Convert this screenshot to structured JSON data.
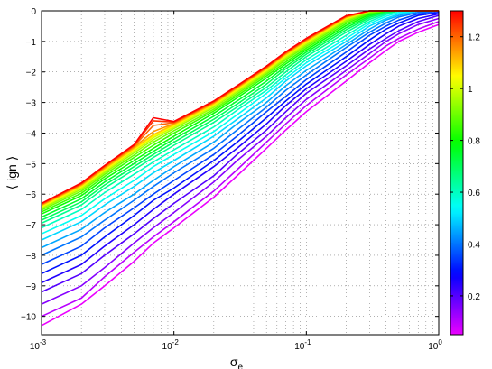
{
  "chart_data": {
    "type": "line",
    "title": "",
    "xlabel": "σ",
    "xlabel_subscript": "e",
    "ylabel": "⟨ ign ⟩",
    "xscale": "log",
    "xlim": [
      0.001,
      1
    ],
    "ylim": [
      -10.6,
      0
    ],
    "grid": "dotted",
    "legend": "none",
    "x_ticks": [
      0.001,
      0.01,
      0.1,
      1
    ],
    "x_tick_labels": [
      {
        "base": "10",
        "exp": "-3"
      },
      {
        "base": "10",
        "exp": "-2"
      },
      {
        "base": "10",
        "exp": "-1"
      },
      {
        "base": "10",
        "exp": "0"
      }
    ],
    "y_ticks": [
      0,
      -1,
      -2,
      -3,
      -4,
      -5,
      -6,
      -7,
      -8,
      -9,
      -10
    ],
    "y_tick_labels": [
      "0",
      "−1",
      "−2",
      "−3",
      "−4",
      "−5",
      "−6",
      "−7",
      "−8",
      "−9",
      "−10"
    ],
    "x": [
      0.001,
      0.002,
      0.003,
      0.005,
      0.007,
      0.01,
      0.02,
      0.03,
      0.05,
      0.07,
      0.1,
      0.2,
      0.3,
      0.4,
      0.5,
      0.7,
      1
    ],
    "series_param_range": [
      0.05,
      1.3
    ],
    "series_count": 26,
    "series_params_note_free": true,
    "colorbar": {
      "colormap": "hsv",
      "range": [
        0.05,
        1.3
      ],
      "ticks": [
        0.2,
        0.4,
        0.6,
        0.8,
        1,
        1.2
      ],
      "tick_labels": [
        "0.2",
        "0.4",
        "0.6",
        "0.8",
        "1",
        "1.2"
      ]
    },
    "series": [
      {
        "param": 0.05,
        "values": [
          -10.3,
          -9.6,
          -9.0,
          -8.2,
          -7.6,
          -7.1,
          -6.1,
          -5.4,
          -4.5,
          -3.9,
          -3.3,
          -2.3,
          -1.7,
          -1.3,
          -1.0,
          -0.7,
          -0.45
        ]
      },
      {
        "param": 0.1,
        "values": [
          -10.0,
          -9.4,
          -8.7,
          -7.9,
          -7.4,
          -6.9,
          -5.9,
          -5.2,
          -4.3,
          -3.7,
          -3.1,
          -2.1,
          -1.55,
          -1.15,
          -0.9,
          -0.6,
          -0.35
        ]
      },
      {
        "param": 0.15,
        "values": [
          -9.6,
          -9.0,
          -8.4,
          -7.6,
          -7.1,
          -6.6,
          -5.6,
          -4.9,
          -4.1,
          -3.5,
          -2.9,
          -1.95,
          -1.4,
          -1.0,
          -0.75,
          -0.45,
          -0.25
        ]
      },
      {
        "param": 0.2,
        "values": [
          -9.2,
          -8.6,
          -8.0,
          -7.3,
          -6.8,
          -6.3,
          -5.4,
          -4.7,
          -3.9,
          -3.3,
          -2.7,
          -1.8,
          -1.25,
          -0.9,
          -0.65,
          -0.35,
          -0.15
        ]
      },
      {
        "param": 0.25,
        "values": [
          -8.9,
          -8.3,
          -7.7,
          -7.0,
          -6.5,
          -6.0,
          -5.1,
          -4.5,
          -3.7,
          -3.1,
          -2.55,
          -1.65,
          -1.1,
          -0.75,
          -0.5,
          -0.25,
          -0.1
        ]
      },
      {
        "param": 0.3,
        "values": [
          -8.6,
          -8.0,
          -7.4,
          -6.7,
          -6.2,
          -5.8,
          -4.9,
          -4.3,
          -3.5,
          -2.95,
          -2.4,
          -1.5,
          -0.95,
          -0.6,
          -0.4,
          -0.15,
          -0.05
        ]
      },
      {
        "param": 0.35,
        "values": [
          -8.3,
          -7.7,
          -7.1,
          -6.45,
          -6.0,
          -5.55,
          -4.7,
          -4.1,
          -3.3,
          -2.8,
          -2.25,
          -1.35,
          -0.8,
          -0.5,
          -0.3,
          -0.1,
          0
        ]
      },
      {
        "param": 0.4,
        "values": [
          -8.0,
          -7.4,
          -6.85,
          -6.2,
          -5.75,
          -5.3,
          -4.5,
          -3.9,
          -3.15,
          -2.6,
          -2.1,
          -1.2,
          -0.7,
          -0.4,
          -0.2,
          -0.05,
          0
        ]
      },
      {
        "param": 0.45,
        "values": [
          -7.75,
          -7.15,
          -6.6,
          -6.0,
          -5.55,
          -5.1,
          -4.3,
          -3.7,
          -3.0,
          -2.45,
          -1.95,
          -1.1,
          -0.6,
          -0.3,
          -0.15,
          0,
          0
        ]
      },
      {
        "param": 0.5,
        "values": [
          -7.5,
          -6.9,
          -6.35,
          -5.75,
          -5.3,
          -4.9,
          -4.1,
          -3.55,
          -2.85,
          -2.3,
          -1.8,
          -1.0,
          -0.5,
          -0.25,
          -0.1,
          0,
          0
        ]
      },
      {
        "param": 0.55,
        "values": [
          -7.3,
          -6.7,
          -6.15,
          -5.55,
          -5.1,
          -4.7,
          -3.95,
          -3.4,
          -2.7,
          -2.2,
          -1.7,
          -0.9,
          -0.42,
          -0.18,
          -0.05,
          0,
          0
        ]
      },
      {
        "param": 0.6,
        "values": [
          -7.1,
          -6.5,
          -5.95,
          -5.35,
          -4.95,
          -4.55,
          -3.8,
          -3.25,
          -2.6,
          -2.1,
          -1.6,
          -0.8,
          -0.35,
          -0.12,
          0,
          0,
          0
        ]
      },
      {
        "param": 0.65,
        "values": [
          -6.95,
          -6.35,
          -5.8,
          -5.2,
          -4.8,
          -4.4,
          -3.65,
          -3.15,
          -2.5,
          -2.0,
          -1.5,
          -0.7,
          -0.28,
          -0.08,
          0,
          0,
          0
        ]
      },
      {
        "param": 0.7,
        "values": [
          -6.85,
          -6.25,
          -5.7,
          -5.1,
          -4.7,
          -4.3,
          -3.55,
          -3.05,
          -2.4,
          -1.9,
          -1.42,
          -0.62,
          -0.22,
          -0.04,
          0,
          0,
          0
        ]
      },
      {
        "param": 0.75,
        "values": [
          -6.75,
          -6.15,
          -5.6,
          -5.0,
          -4.6,
          -4.2,
          -3.45,
          -2.95,
          -2.3,
          -1.82,
          -1.35,
          -0.55,
          -0.17,
          0,
          0,
          0,
          0
        ]
      },
      {
        "param": 0.8,
        "values": [
          -6.65,
          -6.05,
          -5.5,
          -4.9,
          -4.5,
          -4.1,
          -3.35,
          -2.85,
          -2.2,
          -1.74,
          -1.28,
          -0.48,
          -0.12,
          0,
          0,
          0,
          0
        ]
      },
      {
        "param": 0.85,
        "values": [
          -6.58,
          -5.97,
          -5.42,
          -4.8,
          -4.4,
          -4.0,
          -3.28,
          -2.78,
          -2.13,
          -1.67,
          -1.22,
          -0.42,
          -0.08,
          0,
          0,
          0,
          0
        ]
      },
      {
        "param": 0.9,
        "values": [
          -6.52,
          -5.9,
          -5.35,
          -4.72,
          -4.3,
          -3.92,
          -3.22,
          -2.72,
          -2.07,
          -1.6,
          -1.16,
          -0.36,
          -0.05,
          0,
          0,
          0,
          0
        ]
      },
      {
        "param": 0.95,
        "values": [
          -6.47,
          -5.84,
          -5.29,
          -4.65,
          -4.22,
          -3.85,
          -3.16,
          -2.66,
          -2.02,
          -1.55,
          -1.11,
          -0.31,
          -0.03,
          0,
          0,
          0,
          0
        ]
      },
      {
        "param": 1.0,
        "values": [
          -6.43,
          -5.79,
          -5.24,
          -4.59,
          -4.15,
          -3.8,
          -3.11,
          -2.61,
          -1.97,
          -1.5,
          -1.06,
          -0.27,
          -0.01,
          0,
          0,
          0,
          0
        ]
      },
      {
        "param": 1.05,
        "values": [
          -6.4,
          -5.75,
          -5.2,
          -4.54,
          -4.1,
          -3.76,
          -3.07,
          -2.57,
          -1.93,
          -1.46,
          -1.02,
          -0.24,
          0,
          0,
          0,
          0,
          0
        ]
      },
      {
        "param": 1.1,
        "values": [
          -6.37,
          -5.72,
          -5.16,
          -4.5,
          -4.05,
          -3.72,
          -3.04,
          -2.54,
          -1.9,
          -1.43,
          -0.99,
          -0.22,
          0,
          0,
          0,
          0,
          0
        ]
      },
      {
        "param": 1.15,
        "values": [
          -6.35,
          -5.69,
          -5.13,
          -4.46,
          -3.95,
          -3.69,
          -3.01,
          -2.51,
          -1.87,
          -1.4,
          -0.96,
          -0.2,
          0,
          0,
          0,
          0,
          0
        ]
      },
      {
        "param": 1.2,
        "values": [
          -6.33,
          -5.67,
          -5.1,
          -4.43,
          -3.75,
          -3.66,
          -2.99,
          -2.49,
          -1.85,
          -1.38,
          -0.94,
          -0.18,
          0,
          0,
          0,
          0,
          0
        ]
      },
      {
        "param": 1.25,
        "values": [
          -6.31,
          -5.65,
          -5.08,
          -4.4,
          -3.6,
          -3.64,
          -2.97,
          -2.47,
          -1.83,
          -1.36,
          -0.92,
          -0.17,
          0,
          0,
          0,
          0,
          0
        ]
      },
      {
        "param": 1.3,
        "values": [
          -6.3,
          -5.63,
          -5.06,
          -4.38,
          -3.5,
          -3.62,
          -2.95,
          -2.45,
          -1.81,
          -1.34,
          -0.9,
          -0.16,
          0,
          0,
          0,
          0,
          0
        ]
      }
    ]
  }
}
